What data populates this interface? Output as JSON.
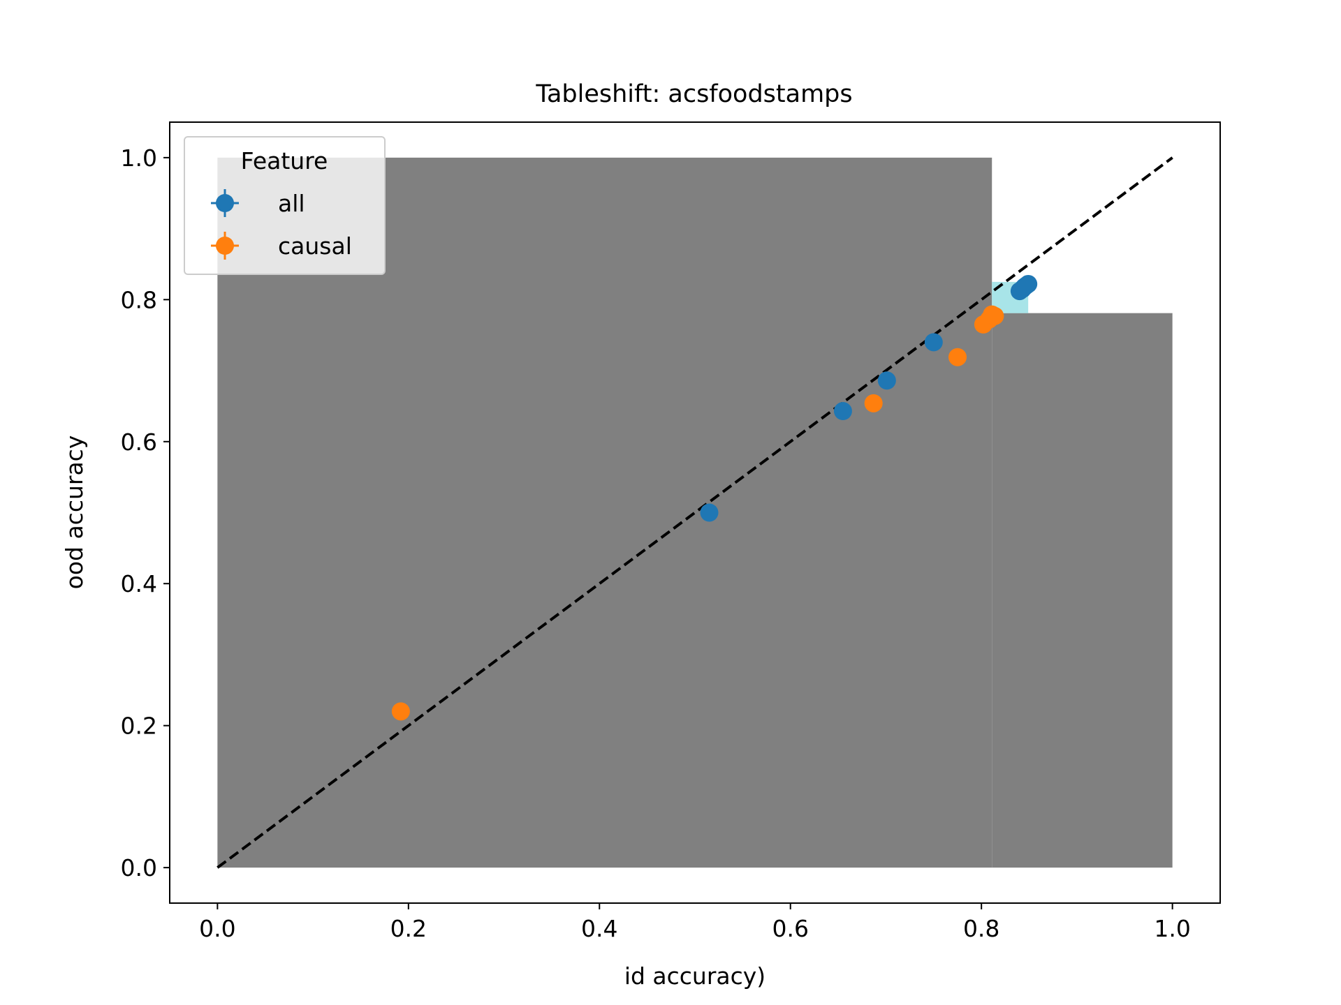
{
  "chart_data": {
    "type": "scatter",
    "title": "Tableshift: acsfoodstamps",
    "xlabel": "id accuracy)",
    "ylabel": "ood accuracy",
    "xlim": [
      -0.05,
      1.05
    ],
    "ylim": [
      -0.05,
      1.05
    ],
    "xticks": [
      "0.0",
      "0.2",
      "0.4",
      "0.6",
      "0.8",
      "1.0"
    ],
    "yticks": [
      "0.0",
      "0.2",
      "0.4",
      "0.6",
      "0.8",
      "1.0"
    ],
    "grid": false,
    "legend": {
      "title": "Feature",
      "placement": "upper-left"
    },
    "reference_line": {
      "style": "dashed",
      "color": "#000000",
      "from": [
        0,
        0
      ],
      "to": [
        1,
        1
      ]
    },
    "shaded_regions": [
      {
        "x": [
          0,
          0.811
        ],
        "y": [
          0,
          1.0
        ],
        "color": "#808080"
      },
      {
        "x": [
          0.811,
          1.0
        ],
        "y": [
          0,
          0.781
        ],
        "color": "#808080"
      },
      {
        "x": [
          0.811,
          0.849
        ],
        "y": [
          0.781,
          0.825
        ],
        "color": "#a8e4e8"
      }
    ],
    "series": [
      {
        "name": "all",
        "color": "#1f77b4",
        "points": [
          {
            "x": 0.515,
            "y": 0.5
          },
          {
            "x": 0.655,
            "y": 0.643
          },
          {
            "x": 0.701,
            "y": 0.686
          },
          {
            "x": 0.75,
            "y": 0.74
          },
          {
            "x": 0.84,
            "y": 0.812
          },
          {
            "x": 0.843,
            "y": 0.815
          },
          {
            "x": 0.845,
            "y": 0.818
          },
          {
            "x": 0.847,
            "y": 0.82
          },
          {
            "x": 0.849,
            "y": 0.822
          }
        ]
      },
      {
        "name": "causal",
        "color": "#ff7f0e",
        "points": [
          {
            "x": 0.192,
            "y": 0.22
          },
          {
            "x": 0.687,
            "y": 0.654
          },
          {
            "x": 0.775,
            "y": 0.719
          },
          {
            "x": 0.802,
            "y": 0.765
          },
          {
            "x": 0.808,
            "y": 0.772
          },
          {
            "x": 0.811,
            "y": 0.779
          },
          {
            "x": 0.814,
            "y": 0.777
          }
        ]
      }
    ]
  }
}
